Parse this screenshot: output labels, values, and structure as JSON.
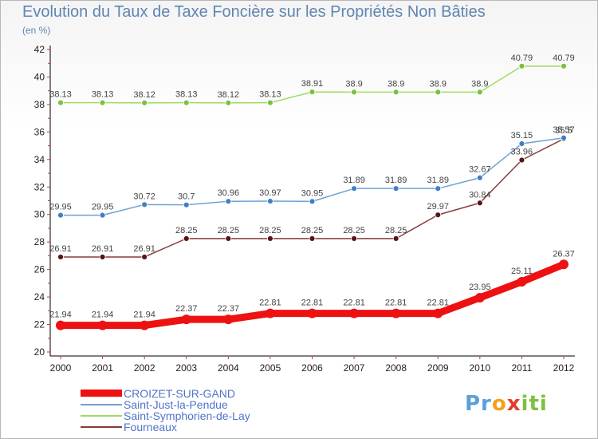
{
  "page": {
    "title": "Evolution du Taux de Taxe Foncière sur les Propriétés Non Bâties",
    "unit": "(en %)",
    "brand": {
      "p": "Pr",
      "o": "o",
      "x": "x",
      "i": "iti"
    }
  },
  "chart_data": {
    "type": "line",
    "title": "Evolution du Taux de Taxe Foncière sur les Propriétés Non Bâties",
    "ylabel": "(en %)",
    "xlabel": "",
    "x": [
      "2000",
      "2001",
      "2002",
      "2003",
      "2004",
      "2005",
      "2006",
      "2007",
      "2008",
      "2009",
      "2010",
      "2011",
      "2012"
    ],
    "ylim": [
      20,
      42
    ],
    "yticks": [
      "20",
      "22",
      "24",
      "26",
      "28",
      "30",
      "32",
      "34",
      "36",
      "38",
      "40",
      "42"
    ],
    "legend_position": "bottom-left",
    "grid": false,
    "series": [
      {
        "name": "CROIZET-SUR-GAND",
        "color": "#ee1111",
        "emphasis": "thick",
        "values": [
          21.94,
          21.94,
          21.94,
          22.37,
          22.37,
          22.81,
          22.81,
          22.81,
          22.81,
          22.81,
          23.95,
          25.11,
          26.37
        ],
        "labels": [
          "21.94",
          "21.94",
          "21.94",
          "22.37",
          "22.37",
          "22.81",
          "22.81",
          "22.81",
          "22.81",
          "22.81",
          "23.95",
          "25.11",
          "26.37"
        ]
      },
      {
        "name": "Saint-Just-la-Pendue",
        "color": "#6fa0d3",
        "marker": "#3f7fc4",
        "values": [
          29.95,
          29.95,
          30.72,
          30.7,
          30.96,
          30.97,
          30.95,
          31.89,
          31.89,
          31.89,
          32.67,
          35.15,
          35.57
        ],
        "labels": [
          "29.95",
          "29.95",
          "30.72",
          "30.7",
          "30.96",
          "30.97",
          "30.95",
          "31.89",
          "31.89",
          "31.89",
          "32.67",
          "35.15",
          "35.57"
        ]
      },
      {
        "name": "Saint-Symphorien-de-Lay",
        "color": "#9edb62",
        "marker": "#7cc040",
        "values": [
          38.13,
          38.13,
          38.12,
          38.13,
          38.12,
          38.13,
          38.91,
          38.9,
          38.9,
          38.9,
          38.9,
          40.79,
          40.79
        ],
        "labels": [
          "38.13",
          "38.13",
          "38.12",
          "38.13",
          "38.12",
          "38.13",
          "38.91",
          "38.9",
          "38.9",
          "38.9",
          "38.9",
          "40.79",
          "40.79"
        ]
      },
      {
        "name": "Fourneaux",
        "color": "#8a3a3a",
        "marker": "#5a1414",
        "values": [
          26.91,
          26.91,
          26.91,
          28.25,
          28.25,
          28.25,
          28.25,
          28.25,
          28.25,
          29.97,
          30.84,
          33.96,
          35.5
        ],
        "labels": [
          "26.91",
          "26.91",
          "26.91",
          "28.25",
          "28.25",
          "28.25",
          "28.25",
          "28.25",
          "28.25",
          "29.97",
          "30.84",
          "33.96",
          "35.5"
        ]
      }
    ]
  }
}
